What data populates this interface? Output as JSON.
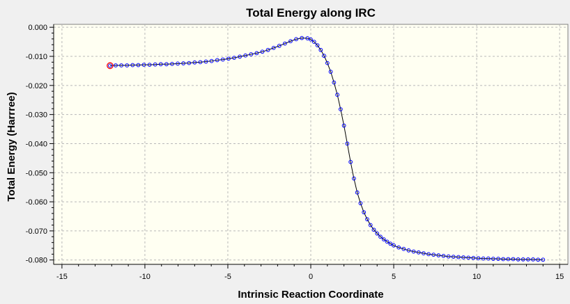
{
  "chart_data": {
    "type": "scatter",
    "title": "Total Energy along IRC",
    "xlabel": "Intrinsic Reaction Coordinate",
    "ylabel": "Total Energy (Harrree)",
    "xlim": [
      -15.5,
      15.5
    ],
    "ylim": [
      -0.0815,
      0.001
    ],
    "x_ticks": [
      -15,
      -10,
      -5,
      0,
      5,
      10,
      15
    ],
    "y_ticks": [
      0.0,
      -0.01,
      -0.02,
      -0.03,
      -0.04,
      -0.05,
      -0.06,
      -0.07,
      -0.08
    ],
    "x_tick_labels": [
      "-15",
      "-10",
      "-5",
      "0",
      "5",
      "10",
      "15"
    ],
    "y_tick_labels": [
      "0.000",
      "-0.010",
      "-0.020",
      "-0.030",
      "-0.040",
      "-0.050",
      "-0.060",
      "-0.070",
      "-0.080"
    ],
    "grid": true,
    "colors": {
      "plot_background": "#fffff2",
      "frame_background": "#f0f0f0",
      "line": "#000000",
      "marker": "#0000ff",
      "highlight_marker": "#ff0000",
      "grid": "#b8b8b8"
    },
    "highlight_point": [
      -12.1,
      -0.0132
    ],
    "series": [
      {
        "x": [
          -12.1,
          -11.76,
          -11.42,
          -11.08,
          -10.74,
          -10.4,
          -10.06,
          -9.72,
          -9.38,
          -9.04,
          -8.7,
          -8.36,
          -8.02,
          -7.68,
          -7.34,
          -7.0,
          -6.66,
          -6.32,
          -5.98,
          -5.64,
          -5.3,
          -4.96,
          -4.62,
          -4.28,
          -3.94,
          -3.6,
          -3.26,
          -2.92,
          -2.58,
          -2.24,
          -1.9,
          -1.56,
          -1.22,
          -0.88,
          -0.54,
          -0.2,
          0.0,
          0.2,
          0.4,
          0.6,
          0.8,
          1.0,
          1.2,
          1.4,
          1.6,
          1.8,
          2.0,
          2.2,
          2.4,
          2.6,
          2.8,
          3.0,
          3.2,
          3.4,
          3.6,
          3.8,
          4.0,
          4.2,
          4.4,
          4.6,
          4.8,
          5.0,
          5.3,
          5.6,
          5.9,
          6.2,
          6.5,
          6.8,
          7.1,
          7.4,
          7.7,
          8.0,
          8.3,
          8.6,
          8.9,
          9.2,
          9.5,
          9.8,
          10.1,
          10.4,
          10.7,
          11.0,
          11.3,
          11.6,
          11.9,
          12.2,
          12.5,
          12.8,
          13.1,
          13.4,
          13.7,
          14.0
        ],
        "y": [
          -0.0132,
          -0.0131,
          -0.0131,
          -0.0131,
          -0.013,
          -0.013,
          -0.0129,
          -0.0129,
          -0.0128,
          -0.0127,
          -0.0127,
          -0.0126,
          -0.0125,
          -0.0124,
          -0.0123,
          -0.0121,
          -0.012,
          -0.0118,
          -0.0116,
          -0.0113,
          -0.0111,
          -0.0108,
          -0.0105,
          -0.0101,
          -0.0097,
          -0.0093,
          -0.0089,
          -0.0084,
          -0.0078,
          -0.0071,
          -0.0064,
          -0.0056,
          -0.0048,
          -0.0041,
          -0.0037,
          -0.0038,
          -0.0042,
          -0.005,
          -0.0062,
          -0.0078,
          -0.0098,
          -0.0123,
          -0.0153,
          -0.019,
          -0.0232,
          -0.0282,
          -0.0338,
          -0.04,
          -0.0463,
          -0.052,
          -0.0568,
          -0.0605,
          -0.0636,
          -0.066,
          -0.068,
          -0.0696,
          -0.0709,
          -0.072,
          -0.0729,
          -0.0737,
          -0.0744,
          -0.075,
          -0.0757,
          -0.0762,
          -0.0767,
          -0.0771,
          -0.0774,
          -0.0777,
          -0.078,
          -0.0782,
          -0.0784,
          -0.0786,
          -0.0788,
          -0.0789,
          -0.079,
          -0.0791,
          -0.0792,
          -0.0793,
          -0.0794,
          -0.0795,
          -0.0795,
          -0.0796,
          -0.0796,
          -0.0797,
          -0.0797,
          -0.0797,
          -0.0798,
          -0.0798,
          -0.0798,
          -0.0798,
          -0.0799,
          -0.0799
        ]
      }
    ]
  }
}
